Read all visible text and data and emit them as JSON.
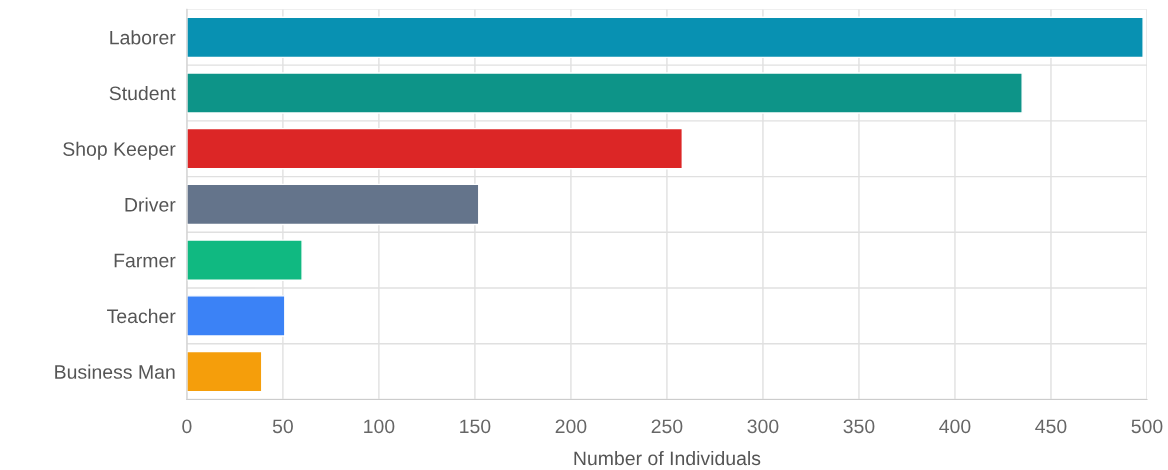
{
  "chart_data": {
    "type": "bar",
    "orientation": "horizontal",
    "xlabel": "Number of Individuals",
    "categories": [
      "Laborer",
      "Student",
      "Shop Keeper",
      "Driver",
      "Farmer",
      "Teacher",
      "Business Man"
    ],
    "values": [
      498,
      435,
      258,
      152,
      60,
      51,
      39
    ],
    "colors": [
      "#0891b2",
      "#0d9488",
      "#dc2626",
      "#64748b",
      "#10b981",
      "#3b82f6",
      "#f59e0b"
    ],
    "xlim": [
      0,
      500
    ],
    "xticks": [
      0,
      50,
      100,
      150,
      200,
      250,
      300,
      350,
      400,
      450,
      500
    ],
    "grid": true,
    "legend": false
  }
}
